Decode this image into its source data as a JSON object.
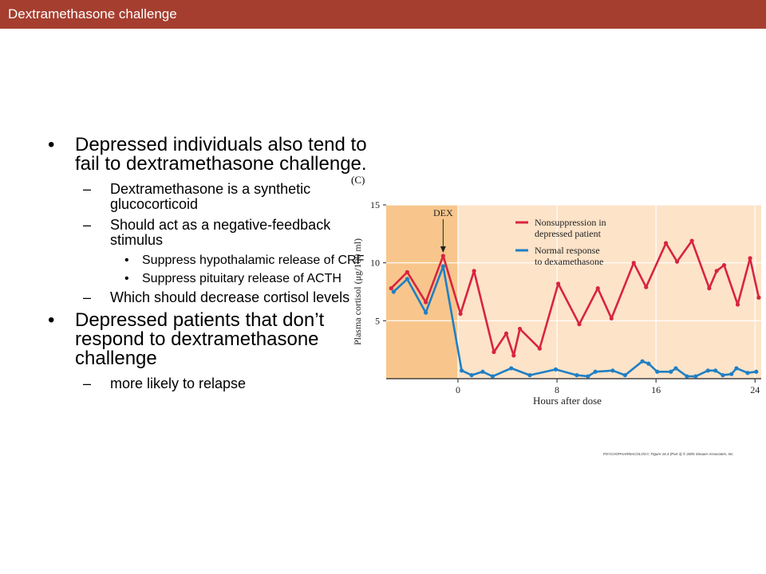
{
  "header": {
    "title": "Dextramethasone challenge"
  },
  "bullets": {
    "b1": "Depressed individuals also tend to fail to dextramethasone challenge.",
    "b1_1": "Dextramethasone is a synthetic glucocorticoid",
    "b1_2": "Should act as a negative-feedback stimulus",
    "b1_2_1": "Suppress hypothalamic release of CRF",
    "b1_2_2": "Suppress pituitary release of ACTH",
    "b1_3": "Which should decrease cortisol levels",
    "b2": "Depressed patients that don’t respond to dextramethasone challenge",
    "b2_1": "more likely to relapse"
  },
  "figure": {
    "panel_label": "(C)",
    "credit": "PSYCHOPHARMACOLOGY, Figure 16.4 (Part 3)  © 2005 Sinauer Associates, Inc.",
    "colors": {
      "pre_dose_bg": "#f8c68c",
      "post_dose_bg": "#fde3c8",
      "red": "#d8243f",
      "blue": "#1f7fc4"
    }
  },
  "chart_data": {
    "type": "line",
    "xlabel": "Hours after dose",
    "ylabel": "Plasma cortisol (μg/100 ml)",
    "xlim": [
      -5.8,
      24.5
    ],
    "ylim": [
      0,
      15
    ],
    "x_ticks": [
      0,
      8,
      16,
      24
    ],
    "y_ticks": [
      5,
      10,
      15
    ],
    "annotation": {
      "text": "DEX",
      "x": -1.2
    },
    "legend_position": "top-right",
    "series": [
      {
        "name": "Nonsuppression in depressed patient",
        "color": "#d8243f",
        "x": [
          -5.4,
          -4.1,
          -2.6,
          -1.2,
          0.2,
          1.3,
          2.9,
          3.9,
          4.5,
          5.0,
          6.6,
          8.1,
          9.8,
          11.3,
          12.4,
          14.2,
          15.2,
          16.8,
          17.7,
          18.9,
          20.3,
          20.9,
          21.5,
          22.6,
          23.6,
          24.3
        ],
        "y": [
          7.8,
          9.2,
          6.6,
          10.6,
          5.6,
          9.3,
          2.3,
          3.9,
          2.0,
          4.3,
          2.6,
          8.2,
          4.7,
          7.8,
          5.2,
          10.0,
          7.9,
          11.7,
          10.1,
          11.9,
          7.8,
          9.3,
          9.8,
          6.4,
          10.4,
          7.0
        ]
      },
      {
        "name": "Normal response to dexamethasone",
        "color": "#1f7fc4",
        "x": [
          -5.2,
          -4.1,
          -2.6,
          -1.2,
          0.3,
          1.1,
          2.0,
          2.8,
          4.3,
          5.8,
          7.9,
          9.6,
          10.5,
          11.1,
          12.5,
          13.5,
          14.9,
          15.4,
          16.1,
          17.2,
          17.6,
          18.5,
          19.2,
          20.2,
          20.8,
          21.4,
          22.1,
          22.5,
          23.4,
          24.1
        ],
        "y": [
          7.5,
          8.6,
          5.7,
          9.7,
          0.7,
          0.3,
          0.6,
          0.2,
          0.9,
          0.3,
          0.8,
          0.3,
          0.2,
          0.6,
          0.7,
          0.3,
          1.5,
          1.3,
          0.6,
          0.6,
          0.9,
          0.2,
          0.2,
          0.7,
          0.7,
          0.3,
          0.4,
          0.9,
          0.5,
          0.6
        ]
      }
    ]
  }
}
